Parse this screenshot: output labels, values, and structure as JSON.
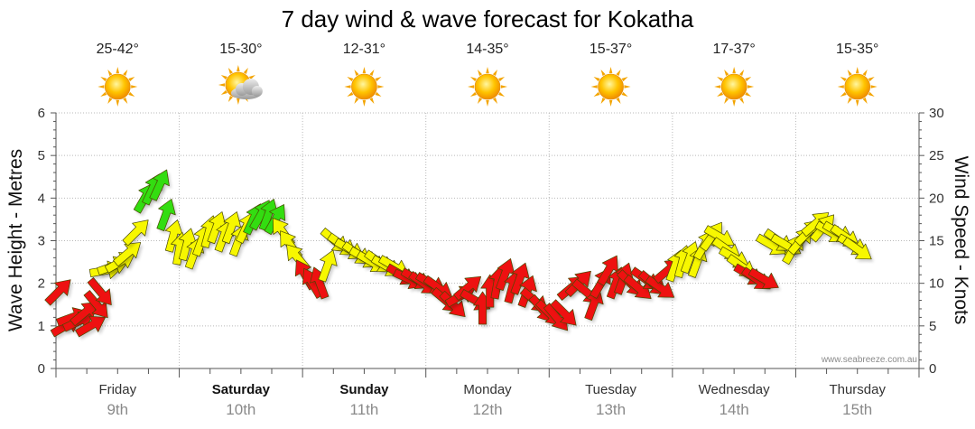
{
  "chart_data": {
    "type": "wind-arrow-timeseries",
    "title": "7 day wind & wave forecast for Kokatha",
    "ylabel_left": "Wave Height - Metres",
    "ylabel_right": "Wind Speed - Knots",
    "ylim_left": [
      0,
      6
    ],
    "ylim_right": [
      0,
      30
    ],
    "left_ticks": [
      "0",
      "1",
      "2",
      "3",
      "4",
      "5",
      "6"
    ],
    "right_ticks": [
      "0",
      "5",
      "10",
      "15",
      "20",
      "25",
      "30"
    ],
    "credit": "www.seabreeze.com.au",
    "days": [
      {
        "name": "Friday",
        "date": "9th",
        "bold": false,
        "temp": "25-42°",
        "icon": "sun-icon"
      },
      {
        "name": "Saturday",
        "date": "10th",
        "bold": true,
        "temp": "15-30°",
        "icon": "sun-cloud-icon"
      },
      {
        "name": "Sunday",
        "date": "11th",
        "bold": true,
        "temp": "12-31°",
        "icon": "sun-icon"
      },
      {
        "name": "Monday",
        "date": "12th",
        "bold": false,
        "temp": "14-35°",
        "icon": "sun-icon"
      },
      {
        "name": "Tuesday",
        "date": "13th",
        "bold": false,
        "temp": "15-37°",
        "icon": "sun-icon"
      },
      {
        "name": "Wednesday",
        "date": "14th",
        "bold": false,
        "temp": "17-37°",
        "icon": "sun-icon"
      },
      {
        "name": "Thursday",
        "date": "15th",
        "bold": false,
        "temp": "15-35°",
        "icon": "sun-icon"
      }
    ],
    "colors": {
      "red": "#ee1111",
      "yellow": "#f7f700",
      "green": "#33dd11",
      "grid": "#b9b9b9"
    },
    "wind_series": [
      {
        "day": 0.02,
        "knots": 9,
        "dir": 225,
        "color": "red"
      },
      {
        "day": 0.08,
        "knots": 5,
        "dir": 240,
        "color": "red"
      },
      {
        "day": 0.13,
        "knots": 6,
        "dir": 250,
        "color": "red"
      },
      {
        "day": 0.18,
        "knots": 5.5,
        "dir": 245,
        "color": "red"
      },
      {
        "day": 0.23,
        "knots": 6.5,
        "dir": 230,
        "color": "red"
      },
      {
        "day": 0.28,
        "knots": 5,
        "dir": 240,
        "color": "red"
      },
      {
        "day": 0.33,
        "knots": 7.5,
        "dir": 320,
        "color": "red"
      },
      {
        "day": 0.36,
        "knots": 9,
        "dir": 320,
        "color": "red"
      },
      {
        "day": 0.4,
        "knots": 11.5,
        "dir": 260,
        "color": "yellow"
      },
      {
        "day": 0.46,
        "knots": 12,
        "dir": 250,
        "color": "yellow"
      },
      {
        "day": 0.52,
        "knots": 12.5,
        "dir": 240,
        "color": "yellow"
      },
      {
        "day": 0.58,
        "knots": 13.5,
        "dir": 230,
        "color": "yellow"
      },
      {
        "day": 0.65,
        "knots": 16,
        "dir": 225,
        "color": "yellow"
      },
      {
        "day": 0.72,
        "knots": 20,
        "dir": 210,
        "color": "green"
      },
      {
        "day": 0.78,
        "knots": 21,
        "dir": 205,
        "color": "green"
      },
      {
        "day": 0.84,
        "knots": 21.5,
        "dir": 205,
        "color": "green"
      },
      {
        "day": 0.89,
        "knots": 18,
        "dir": 200,
        "color": "green"
      },
      {
        "day": 0.95,
        "knots": 15.5,
        "dir": 195,
        "color": "yellow"
      },
      {
        "day": 1.0,
        "knots": 14,
        "dir": 190,
        "color": "yellow"
      },
      {
        "day": 1.06,
        "knots": 14.5,
        "dir": 195,
        "color": "yellow"
      },
      {
        "day": 1.12,
        "knots": 13.5,
        "dir": 200,
        "color": "yellow"
      },
      {
        "day": 1.18,
        "knots": 15,
        "dir": 200,
        "color": "yellow"
      },
      {
        "day": 1.24,
        "knots": 16,
        "dir": 195,
        "color": "yellow"
      },
      {
        "day": 1.3,
        "knots": 16.5,
        "dir": 200,
        "color": "yellow"
      },
      {
        "day": 1.36,
        "knots": 15.5,
        "dir": 200,
        "color": "yellow"
      },
      {
        "day": 1.42,
        "knots": 16.5,
        "dir": 200,
        "color": "yellow"
      },
      {
        "day": 1.48,
        "knots": 15,
        "dir": 200,
        "color": "yellow"
      },
      {
        "day": 1.54,
        "knots": 16.5,
        "dir": 205,
        "color": "yellow"
      },
      {
        "day": 1.6,
        "knots": 17.5,
        "dir": 205,
        "color": "green"
      },
      {
        "day": 1.66,
        "knots": 18,
        "dir": 210,
        "color": "green"
      },
      {
        "day": 1.72,
        "knots": 18,
        "dir": 200,
        "color": "green"
      },
      {
        "day": 1.78,
        "knots": 17.5,
        "dir": 210,
        "color": "green"
      },
      {
        "day": 1.84,
        "knots": 16,
        "dir": 145,
        "color": "yellow"
      },
      {
        "day": 1.9,
        "knots": 14.5,
        "dir": 145,
        "color": "yellow"
      },
      {
        "day": 1.96,
        "knots": 13,
        "dir": 140,
        "color": "yellow"
      },
      {
        "day": 2.02,
        "knots": 11,
        "dir": 150,
        "color": "red"
      },
      {
        "day": 2.08,
        "knots": 10,
        "dir": 150,
        "color": "red"
      },
      {
        "day": 2.14,
        "knots": 10,
        "dir": 160,
        "color": "red"
      },
      {
        "day": 2.2,
        "knots": 12,
        "dir": 200,
        "color": "yellow"
      },
      {
        "day": 2.26,
        "knots": 15,
        "dir": 310,
        "color": "yellow"
      },
      {
        "day": 2.32,
        "knots": 14.5,
        "dir": 305,
        "color": "yellow"
      },
      {
        "day": 2.38,
        "knots": 14,
        "dir": 300,
        "color": "yellow"
      },
      {
        "day": 2.44,
        "knots": 13.5,
        "dir": 305,
        "color": "yellow"
      },
      {
        "day": 2.5,
        "knots": 13,
        "dir": 300,
        "color": "yellow"
      },
      {
        "day": 2.56,
        "knots": 12.5,
        "dir": 300,
        "color": "yellow"
      },
      {
        "day": 2.62,
        "knots": 12.5,
        "dir": 305,
        "color": "yellow"
      },
      {
        "day": 2.68,
        "knots": 12,
        "dir": 300,
        "color": "yellow"
      },
      {
        "day": 2.74,
        "knots": 12,
        "dir": 300,
        "color": "yellow"
      },
      {
        "day": 2.8,
        "knots": 11,
        "dir": 300,
        "color": "red"
      },
      {
        "day": 2.86,
        "knots": 10.5,
        "dir": 295,
        "color": "red"
      },
      {
        "day": 2.92,
        "knots": 10.5,
        "dir": 300,
        "color": "red"
      },
      {
        "day": 2.98,
        "knots": 10,
        "dir": 305,
        "color": "red"
      },
      {
        "day": 3.04,
        "knots": 10,
        "dir": 300,
        "color": "red"
      },
      {
        "day": 3.1,
        "knots": 9.5,
        "dir": 305,
        "color": "red"
      },
      {
        "day": 3.16,
        "knots": 8,
        "dir": 310,
        "color": "red"
      },
      {
        "day": 3.22,
        "knots": 7.5,
        "dir": 315,
        "color": "red"
      },
      {
        "day": 3.28,
        "knots": 8.5,
        "dir": 240,
        "color": "red"
      },
      {
        "day": 3.34,
        "knots": 9.5,
        "dir": 230,
        "color": "red"
      },
      {
        "day": 3.4,
        "knots": 8,
        "dir": 300,
        "color": "red"
      },
      {
        "day": 3.46,
        "knots": 7,
        "dir": 180,
        "color": "red"
      },
      {
        "day": 3.52,
        "knots": 9,
        "dir": 180,
        "color": "red"
      },
      {
        "day": 3.58,
        "knots": 10,
        "dir": 190,
        "color": "red"
      },
      {
        "day": 3.64,
        "knots": 11,
        "dir": 200,
        "color": "red"
      },
      {
        "day": 3.7,
        "knots": 9.5,
        "dir": 195,
        "color": "red"
      },
      {
        "day": 3.76,
        "knots": 10.5,
        "dir": 200,
        "color": "red"
      },
      {
        "day": 3.82,
        "knots": 9,
        "dir": 200,
        "color": "red"
      },
      {
        "day": 3.88,
        "knots": 8,
        "dir": 310,
        "color": "red"
      },
      {
        "day": 3.94,
        "knots": 7,
        "dir": 320,
        "color": "red"
      },
      {
        "day": 4.0,
        "knots": 6.5,
        "dir": 315,
        "color": "red"
      },
      {
        "day": 4.06,
        "knots": 6,
        "dir": 320,
        "color": "red"
      },
      {
        "day": 4.12,
        "knots": 6.5,
        "dir": 315,
        "color": "red"
      },
      {
        "day": 4.18,
        "knots": 9.5,
        "dir": 230,
        "color": "red"
      },
      {
        "day": 4.24,
        "knots": 10,
        "dir": 225,
        "color": "red"
      },
      {
        "day": 4.3,
        "knots": 9,
        "dir": 310,
        "color": "red"
      },
      {
        "day": 4.36,
        "knots": 7.5,
        "dir": 200,
        "color": "red"
      },
      {
        "day": 4.42,
        "knots": 10,
        "dir": 210,
        "color": "red"
      },
      {
        "day": 4.48,
        "knots": 11.5,
        "dir": 210,
        "color": "red"
      },
      {
        "day": 4.54,
        "knots": 10,
        "dir": 200,
        "color": "red"
      },
      {
        "day": 4.6,
        "knots": 10.5,
        "dir": 200,
        "color": "red"
      },
      {
        "day": 4.66,
        "knots": 10,
        "dir": 315,
        "color": "red"
      },
      {
        "day": 4.72,
        "knots": 9.5,
        "dir": 310,
        "color": "red"
      },
      {
        "day": 4.78,
        "knots": 10.5,
        "dir": 305,
        "color": "red"
      },
      {
        "day": 4.84,
        "knots": 10,
        "dir": 310,
        "color": "red"
      },
      {
        "day": 4.9,
        "knots": 9.5,
        "dir": 305,
        "color": "red"
      },
      {
        "day": 4.96,
        "knots": 11.5,
        "dir": 230,
        "color": "red"
      },
      {
        "day": 5.02,
        "knots": 12,
        "dir": 200,
        "color": "yellow"
      },
      {
        "day": 5.08,
        "knots": 12.5,
        "dir": 195,
        "color": "yellow"
      },
      {
        "day": 5.14,
        "knots": 13,
        "dir": 200,
        "color": "yellow"
      },
      {
        "day": 5.2,
        "knots": 12.5,
        "dir": 200,
        "color": "yellow"
      },
      {
        "day": 5.26,
        "knots": 14.5,
        "dir": 210,
        "color": "yellow"
      },
      {
        "day": 5.32,
        "knots": 15.5,
        "dir": 215,
        "color": "yellow"
      },
      {
        "day": 5.38,
        "knots": 15.5,
        "dir": 300,
        "color": "yellow"
      },
      {
        "day": 5.44,
        "knots": 14,
        "dir": 305,
        "color": "yellow"
      },
      {
        "day": 5.5,
        "knots": 13,
        "dir": 300,
        "color": "yellow"
      },
      {
        "day": 5.56,
        "knots": 12,
        "dir": 305,
        "color": "yellow"
      },
      {
        "day": 5.62,
        "knots": 11,
        "dir": 300,
        "color": "red"
      },
      {
        "day": 5.68,
        "knots": 10.5,
        "dir": 305,
        "color": "red"
      },
      {
        "day": 5.74,
        "knots": 10.5,
        "dir": 300,
        "color": "red"
      },
      {
        "day": 5.8,
        "knots": 14.5,
        "dir": 300,
        "color": "yellow"
      },
      {
        "day": 5.86,
        "knots": 15,
        "dir": 305,
        "color": "yellow"
      },
      {
        "day": 5.92,
        "knots": 14.5,
        "dir": 300,
        "color": "yellow"
      },
      {
        "day": 5.98,
        "knots": 14,
        "dir": 210,
        "color": "yellow"
      },
      {
        "day": 6.04,
        "knots": 15,
        "dir": 220,
        "color": "yellow"
      },
      {
        "day": 6.1,
        "knots": 16,
        "dir": 225,
        "color": "yellow"
      },
      {
        "day": 6.16,
        "knots": 17,
        "dir": 230,
        "color": "yellow"
      },
      {
        "day": 6.22,
        "knots": 16.5,
        "dir": 220,
        "color": "yellow"
      },
      {
        "day": 6.28,
        "knots": 16,
        "dir": 300,
        "color": "yellow"
      },
      {
        "day": 6.34,
        "knots": 16,
        "dir": 300,
        "color": "yellow"
      },
      {
        "day": 6.4,
        "knots": 15.5,
        "dir": 305,
        "color": "yellow"
      },
      {
        "day": 6.46,
        "knots": 14.5,
        "dir": 300,
        "color": "yellow"
      },
      {
        "day": 6.5,
        "knots": 14,
        "dir": 305,
        "color": "yellow"
      }
    ]
  }
}
